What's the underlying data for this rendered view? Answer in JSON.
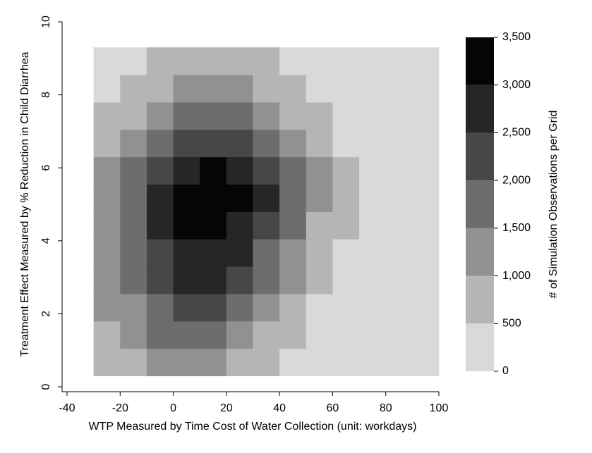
{
  "chart_data": {
    "type": "contour",
    "x_label": "WTP Measured by Time Cost of Water Collection (unit: workdays)",
    "y_label": "Treatment Effect Measured by % Reduction in Child Diarrhea",
    "colorbar_label": "# of Simulation Observations per Grid",
    "xlim": [
      -40,
      100
    ],
    "xticks": [
      -40,
      -20,
      0,
      20,
      40,
      60,
      80,
      100
    ],
    "ylim": [
      0,
      10
    ],
    "yticks": [
      0,
      2,
      4,
      6,
      8,
      10
    ],
    "x": [
      -25,
      -15,
      -5,
      5,
      15,
      25,
      35,
      45,
      55,
      65,
      75,
      85,
      95
    ],
    "y": [
      0.675,
      1.425,
      2.175,
      2.925,
      3.675,
      4.425,
      5.175,
      5.925,
      6.675,
      7.425,
      8.175,
      8.925
    ],
    "z": [
      [
        681,
        947,
        1148,
        1214,
        1117,
        897,
        627,
        383,
        204,
        94,
        38,
        13,
        4
      ],
      [
        865,
        1230,
        1523,
        1645,
        1548,
        1272,
        909,
        567,
        308,
        146,
        61,
        22,
        7
      ],
      [
        1027,
        1496,
        1900,
        2102,
        2027,
        1707,
        1251,
        800,
        446,
        218,
        92,
        34,
        11
      ],
      [
        1143,
        1709,
        2227,
        2529,
        2506,
        2164,
        1629,
        1069,
        612,
        305,
        133,
        51,
        17
      ],
      [
        1199,
        1838,
        2459,
        2868,
        2915,
        2582,
        1997,
        1345,
        790,
        405,
        181,
        71,
        24
      ],
      [
        1186,
        1866,
        2561,
        3065,
        3200,
        2911,
        2308,
        1600,
        962,
        507,
        231,
        93,
        32
      ],
      [
        1102,
        1781,
        2509,
        3080,
        3300,
        3080,
        2509,
        1781,
        1102,
        594,
        280,
        115,
        41
      ],
      [
        1016,
        1643,
        2313,
        2839,
        3043,
        2839,
        2313,
        1643,
        1016,
        548,
        258,
        106,
        38
      ],
      [
        788,
        1273,
        1792,
        2200,
        2358,
        2200,
        1792,
        1273,
        788,
        424,
        200,
        82,
        29
      ],
      [
        590,
        955,
        1343,
        1649,
        1768,
        1649,
        1343,
        955,
        590,
        319,
        150,
        61,
        22
      ],
      [
        393,
        637,
        896,
        1100,
        1179,
        1100,
        896,
        637,
        393,
        213,
        99,
        41,
        14
      ],
      [
        260,
        420,
        590,
        720,
        780,
        720,
        590,
        420,
        260,
        140,
        66,
        26,
        10
      ]
    ],
    "levels": [
      0,
      500,
      1000,
      1500,
      2000,
      2500,
      3000,
      3500
    ],
    "level_ticks": [
      0,
      500,
      {
        "value": 1000,
        "label": "1,000"
      },
      {
        "value": 1500,
        "label": "1,500"
      },
      {
        "value": 2000,
        "label": "2,000"
      },
      {
        "value": 2500,
        "label": "2,500"
      },
      {
        "value": 3000,
        "label": "3,000"
      },
      {
        "value": 3500,
        "label": "3,500"
      }
    ],
    "colors": [
      "#d9d9d9",
      "#b5b5b5",
      "#919191",
      "#6d6d6d",
      "#474747",
      "#262626",
      "#050505"
    ]
  }
}
